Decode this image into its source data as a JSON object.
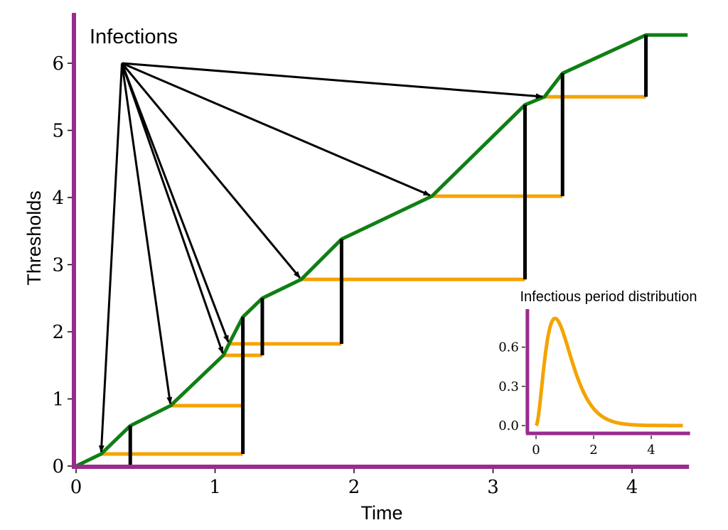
{
  "chart_data": [
    {
      "type": "line",
      "title": "",
      "xlabel": "Time",
      "ylabel": "Thresholds",
      "xlim": [
        0,
        4.4
      ],
      "ylim": [
        0,
        6.6
      ],
      "xticks": [
        "0",
        "1",
        "2",
        "3",
        "4"
      ],
      "yticks": [
        "0",
        "1",
        "2",
        "3",
        "4",
        "5",
        "6"
      ],
      "annotation": "Infections",
      "colors": {
        "axis": "#9B2A8E",
        "force": "#0F7F14",
        "infectious": "#F5A300",
        "recovery": "#000000",
        "arrow": "#000000"
      },
      "series": [
        {
          "x": [
            0,
            0.18,
            0.39,
            0.68,
            1.06,
            1.1,
            1.2,
            1.34,
            1.62,
            1.91,
            2.56,
            3.23,
            3.37,
            3.5,
            4.1,
            4.4
          ],
          "y": [
            0,
            0.18,
            0.6,
            0.9,
            1.65,
            1.82,
            2.22,
            2.5,
            2.78,
            3.38,
            4.02,
            5.38,
            5.5,
            5.85,
            6.42,
            6.42
          ]
        }
      ],
      "infectious_periods": [
        {
          "level": 0.18,
          "start": 0.18,
          "end": 1.2
        },
        {
          "level": 0.9,
          "start": 0.68,
          "end": 1.2
        },
        {
          "level": 1.65,
          "start": 1.06,
          "end": 1.34
        },
        {
          "level": 1.82,
          "start": 1.1,
          "end": 1.91
        },
        {
          "level": 2.78,
          "start": 1.62,
          "end": 3.23
        },
        {
          "level": 4.02,
          "start": 2.56,
          "end": 3.5
        },
        {
          "level": 5.5,
          "start": 3.37,
          "end": 4.1
        }
      ],
      "recovery_drops": [
        {
          "x": 0.39,
          "y_top": 0.6,
          "y_bottom": 0
        },
        {
          "x": 1.2,
          "y_top": 2.22,
          "y_bottom": 0.18
        },
        {
          "x": 1.34,
          "y_top": 2.5,
          "y_bottom": 1.65
        },
        {
          "x": 1.91,
          "y_top": 3.38,
          "y_bottom": 1.82
        },
        {
          "x": 3.23,
          "y_top": 5.38,
          "y_bottom": 2.78
        },
        {
          "x": 3.5,
          "y_top": 5.85,
          "y_bottom": 4.02
        },
        {
          "x": 4.1,
          "y_top": 6.42,
          "y_bottom": 5.5
        }
      ],
      "infection_arrows": {
        "origin": {
          "x": 0.33,
          "y": 6.0
        },
        "targets": [
          {
            "x": 0.18,
            "y": 0.18
          },
          {
            "x": 0.68,
            "y": 0.9
          },
          {
            "x": 1.06,
            "y": 1.65
          },
          {
            "x": 1.1,
            "y": 1.82
          },
          {
            "x": 1.62,
            "y": 2.78
          },
          {
            "x": 2.56,
            "y": 4.02
          },
          {
            "x": 3.37,
            "y": 5.5
          }
        ]
      }
    },
    {
      "type": "line",
      "title": "Infectious period distribution",
      "xlim": [
        -0.3,
        5.35
      ],
      "ylim": [
        -0.06,
        0.88
      ],
      "xticks": [
        "0",
        "2",
        "4"
      ],
      "yticks": [
        "0.0",
        "0.3",
        "0.6"
      ],
      "distribution": "gamma",
      "shape": 3,
      "scale": 0.33,
      "x_range": [
        0,
        5.1
      ]
    }
  ]
}
